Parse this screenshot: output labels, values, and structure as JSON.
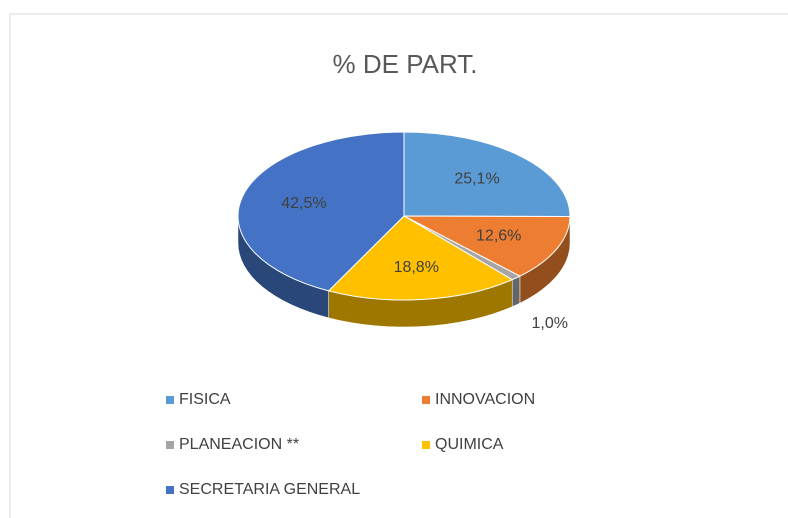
{
  "chart_data": {
    "type": "pie3d",
    "title": "% DE PART.",
    "categories": [
      "FISICA",
      "INNOVACION",
      "PLANEACION **",
      "QUIMICA",
      "SECRETARIA GENERAL"
    ],
    "values": [
      25.1,
      12.6,
      1.0,
      18.8,
      42.5
    ],
    "value_labels": [
      "25,1%",
      "12,6%",
      "1,0%",
      "18,8%",
      "42,5%"
    ],
    "colors": [
      "#5b9bd5",
      "#ed7d31",
      "#a5a5a5",
      "#ffc000",
      "#4472c4"
    ],
    "legend": "bottom"
  }
}
